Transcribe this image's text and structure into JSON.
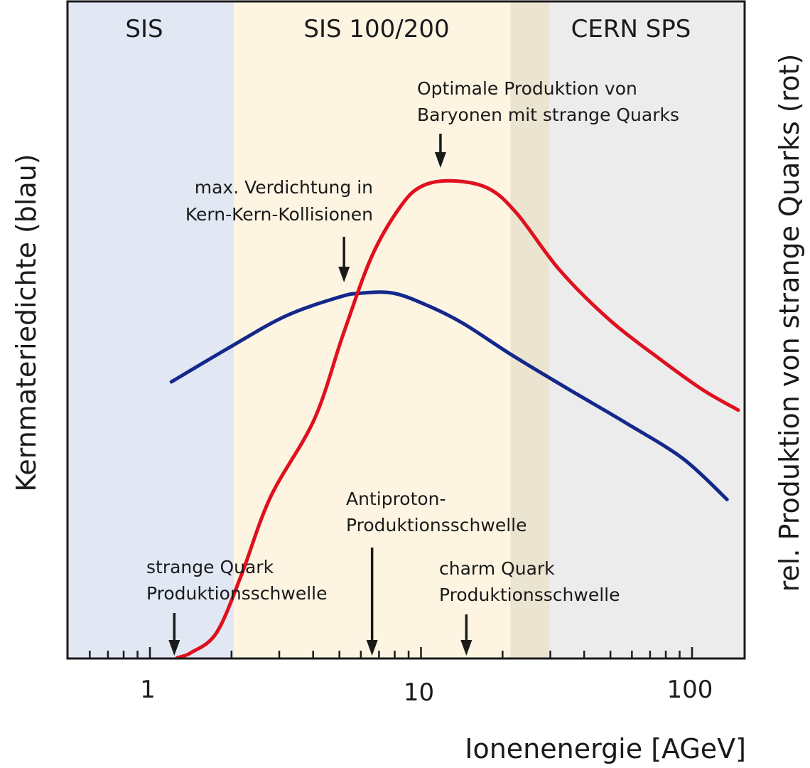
{
  "chart_data": {
    "type": "line",
    "title": "",
    "xlabel": "Ionenenergie [AGeV]",
    "ylabel": "Kernmateriedichte (blau)",
    "ylabel_right": "rel. Produktion von strange Quarks (rot)",
    "xscale": "log",
    "xlim": [
      0.5,
      157
    ],
    "ylim": [
      0,
      1
    ],
    "grid": false,
    "x_tick_labels": [
      {
        "value": 1,
        "label": "1"
      },
      {
        "value": 10,
        "label": "10"
      },
      {
        "value": 100,
        "label": "100"
      }
    ],
    "x_minor_ticks": [
      0.6,
      0.7,
      0.8,
      0.9,
      2,
      3,
      4,
      5,
      6,
      7,
      8,
      9,
      20,
      30,
      40,
      50,
      60,
      70,
      80,
      90
    ],
    "regions": [
      {
        "name": "SIS",
        "from": 0.5,
        "to": 2.04,
        "color": "#e1e8f4"
      },
      {
        "name": "SIS 100/200",
        "from": 2.04,
        "to": 29.7,
        "color": "#fdf5e2"
      },
      {
        "name": "",
        "from": 21.4,
        "to": 29.7,
        "color": "#ebe4d1"
      },
      {
        "name": "CERN SPS",
        "from": 29.7,
        "to": 157,
        "color": "#ececec"
      }
    ],
    "series": [
      {
        "name": "Kernmateriedichte",
        "color": "#14288c",
        "axis": "left",
        "x": [
          1.2,
          1.94,
          3.16,
          4.99,
          6.0,
          7.9,
          10.6,
          14.3,
          21.8,
          35.3,
          57.3,
          92.7,
          134.6
        ],
        "y": [
          0.421,
          0.472,
          0.521,
          0.55,
          0.556,
          0.556,
          0.537,
          0.51,
          0.461,
          0.409,
          0.358,
          0.304,
          0.242
        ]
      },
      {
        "name": "rel. Produktion von strange Quarks",
        "color": "#e0101e",
        "axis": "right",
        "x": [
          1.26,
          1.42,
          1.76,
          2.17,
          2.78,
          4.04,
          5.17,
          6.6,
          8.44,
          10.1,
          12.9,
          17.6,
          22.5,
          32.5,
          49.7,
          75.9,
          109.4,
          148.0
        ],
        "y": [
          0.001,
          0.009,
          0.039,
          0.126,
          0.245,
          0.364,
          0.494,
          0.613,
          0.689,
          0.719,
          0.727,
          0.716,
          0.678,
          0.591,
          0.515,
          0.456,
          0.409,
          0.378
        ]
      }
    ],
    "annotations": [
      {
        "id": "strange-threshold",
        "x": 1.23,
        "lines": [
          "strange Quark",
          "Produktionsschwelle"
        ],
        "arrow_to": "axis"
      },
      {
        "id": "antiproton-threshold",
        "x": 6.6,
        "lines": [
          "Antiproton-",
          "Produktionsschwelle"
        ],
        "arrow_to": "axis"
      },
      {
        "id": "charm-threshold",
        "x": 14.7,
        "lines": [
          "charm Quark",
          "Produktionsschwelle"
        ],
        "arrow_to": "axis"
      },
      {
        "id": "max-density",
        "x": 5.2,
        "lines": [
          "max. Verdichtung in",
          "Kern-Kern-Kollisionen"
        ],
        "arrow_to": "blue-peak"
      },
      {
        "id": "optimal-strange",
        "x": 11.8,
        "lines": [
          "Optimale Produktion von",
          "Baryonen mit strange Quarks"
        ],
        "arrow_to": "red-peak"
      }
    ]
  }
}
